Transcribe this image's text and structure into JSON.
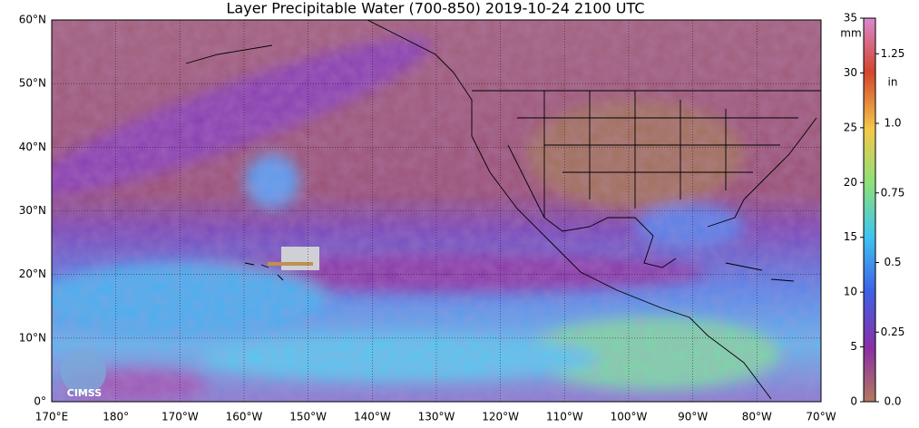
{
  "title": "Layer Precipitable Water (700-850)  2019-10-24 2100 UTC",
  "latitude_labels": [
    "60°N",
    "50°N",
    "40°N",
    "30°N",
    "20°N",
    "10°N",
    "0°"
  ],
  "longitude_labels": [
    "170°E",
    "180°",
    "170°W",
    "160°W",
    "150°W",
    "140°W",
    "130°W",
    "120°W",
    "110°W",
    "100°W",
    "90°W",
    "80°W",
    "70°W"
  ],
  "colorbar": {
    "mm_label": "mm",
    "mm_ticks": [
      0,
      5,
      10,
      15,
      20,
      25,
      30,
      35
    ],
    "in_label": "in",
    "in_ticks": [
      {
        "value": 0,
        "label": "0.0"
      },
      0.25,
      0.5,
      0.75,
      {
        "value": 1,
        "label": "1.0"
      },
      1.25
    ]
  },
  "logo": "CIMSS"
}
